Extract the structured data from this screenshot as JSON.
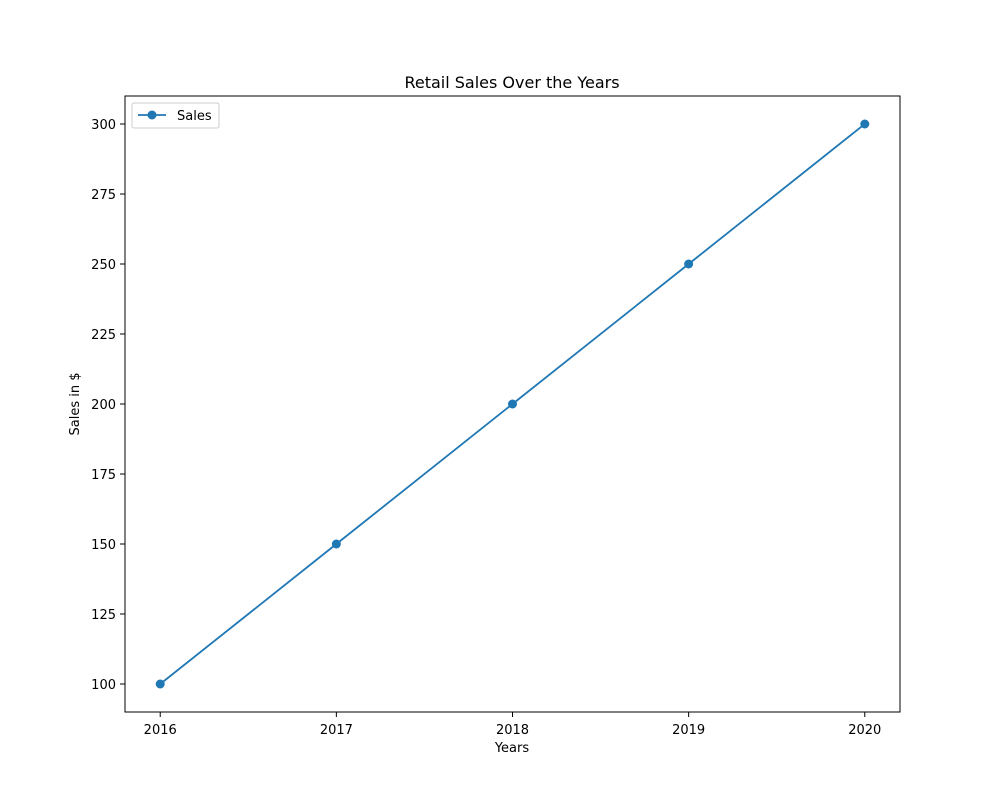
{
  "chart_data": {
    "type": "line",
    "title": "Retail Sales Over the Years",
    "xlabel": "Years",
    "ylabel": "Sales in $",
    "x": [
      2016,
      2017,
      2018,
      2019,
      2020
    ],
    "x_tick_labels": [
      "2016",
      "2017",
      "2018",
      "2019",
      "2020"
    ],
    "y_ticks": [
      100,
      125,
      150,
      175,
      200,
      225,
      250,
      275,
      300
    ],
    "y_tick_labels": [
      "100",
      "125",
      "150",
      "175",
      "200",
      "225",
      "250",
      "275",
      "300"
    ],
    "xlim": [
      2015.8,
      2020.2
    ],
    "ylim": [
      90,
      310
    ],
    "grid": false,
    "legend_position": "upper-left",
    "series": [
      {
        "name": "Sales",
        "values": [
          100,
          150,
          200,
          250,
          300
        ],
        "color": "#1f77b4",
        "marker": "circle"
      }
    ]
  }
}
